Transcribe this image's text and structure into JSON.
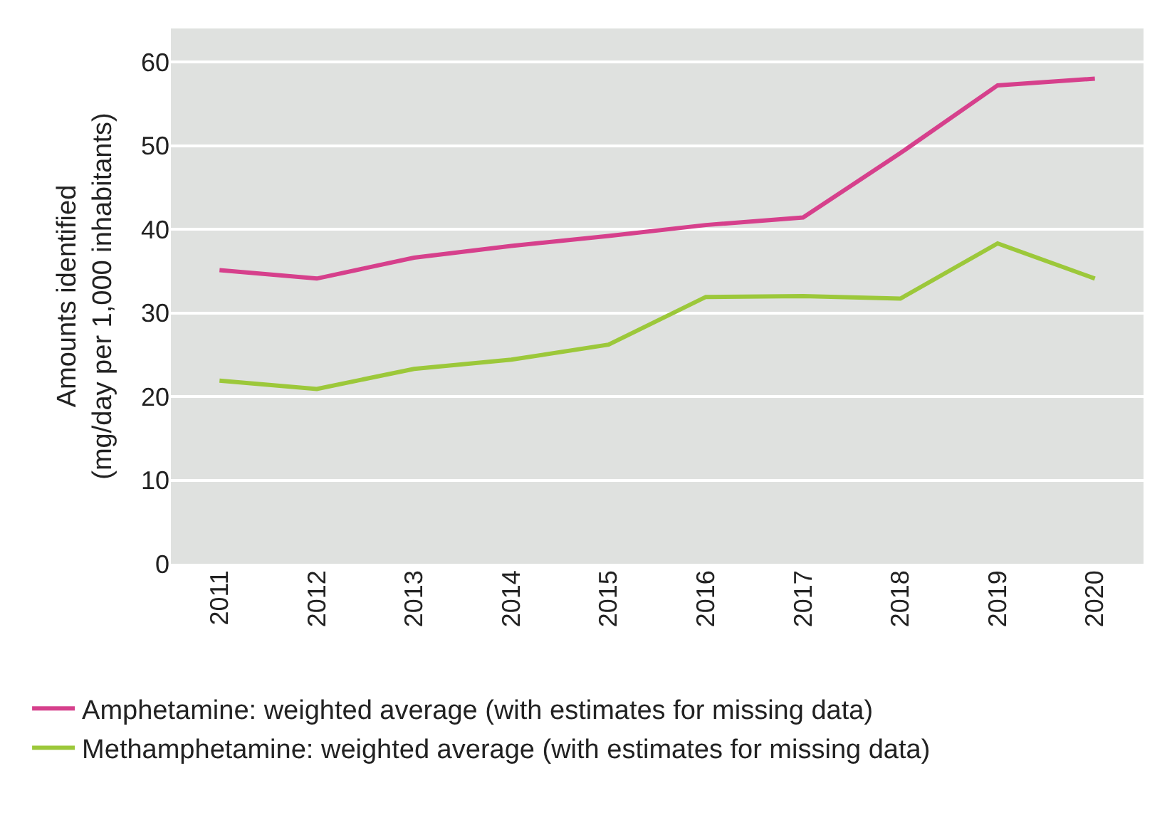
{
  "chart_data": {
    "type": "line",
    "ylabel": "Amounts identified\n(mg/day per 1,000 inhabitants)",
    "categories": [
      "2011",
      "2012",
      "2013",
      "2014",
      "2015",
      "2016",
      "2017",
      "2018",
      "2019",
      "2020"
    ],
    "series": [
      {
        "name": "Amphetamine: weighted average (with estimates for missing data)",
        "color": "#d6408c",
        "values": [
          35.1,
          34.1,
          36.6,
          38.0,
          39.2,
          40.5,
          41.4,
          49.1,
          57.2,
          58.0
        ]
      },
      {
        "name": "Methamphetamine: weighted average (with estimates for missing data)",
        "color": "#9cc83a",
        "values": [
          21.9,
          20.9,
          23.3,
          24.4,
          26.2,
          31.9,
          32.0,
          31.7,
          38.3,
          34.1
        ]
      }
    ],
    "ylim": [
      0,
      64
    ],
    "yticks": [
      0,
      10,
      20,
      30,
      40,
      50,
      60
    ],
    "grid": "y",
    "legend": "bottom",
    "marker": "none",
    "line_style": "solid"
  }
}
